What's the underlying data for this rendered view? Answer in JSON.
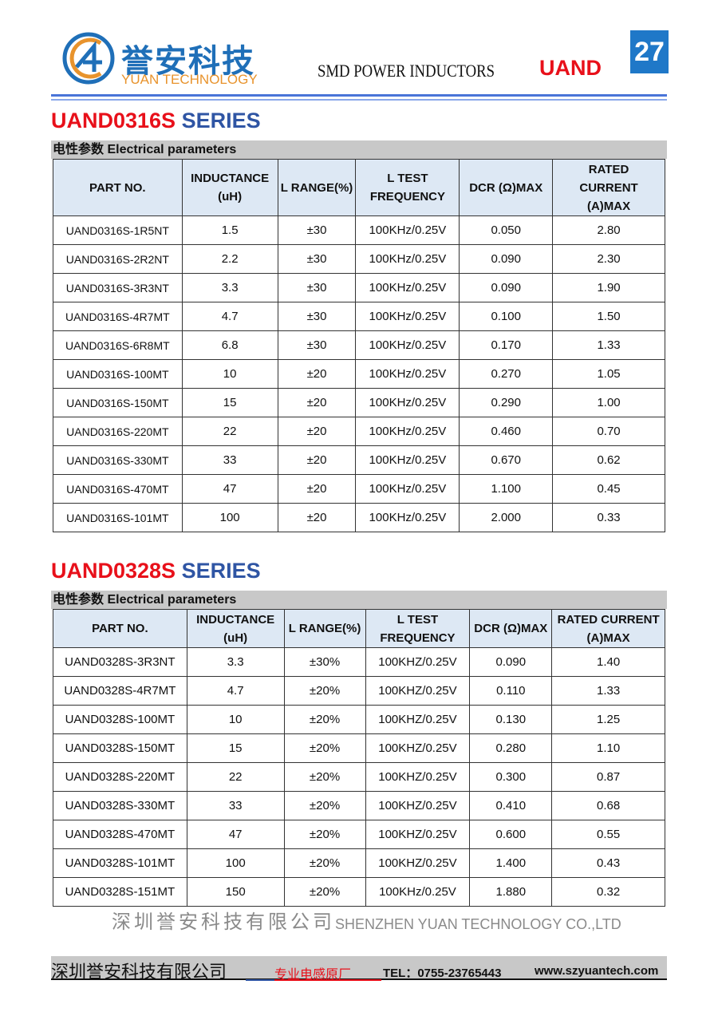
{
  "header": {
    "brand_cn": "誉安科技",
    "brand_en": "YUAN TECHNOLOGY",
    "doc_title": "SMD POWER INDUCTORS",
    "brand_code": "UAND",
    "page_number": "27"
  },
  "section_bar": "电性参数 Electrical parameters",
  "tables": [
    {
      "series_code": "UAND0316S",
      "series_word": "SERIES",
      "columns": [
        "PART NO.",
        "INDUCTANCE (uH)",
        "L RANGE(%)",
        "L TEST FREQUENCY",
        "DCR (Ω)MAX",
        "RATED CURRENT (A)MAX"
      ],
      "rows": [
        [
          "UAND0316S-1R5NT",
          "1.5",
          "±30",
          "100KHz/0.25V",
          "0.050",
          "2.80"
        ],
        [
          "UAND0316S-2R2NT",
          "2.2",
          "±30",
          "100KHz/0.25V",
          "0.090",
          "2.30"
        ],
        [
          "UAND0316S-3R3NT",
          "3.3",
          "±30",
          "100KHz/0.25V",
          "0.090",
          "1.90"
        ],
        [
          "UAND0316S-4R7MT",
          "4.7",
          "±30",
          "100KHz/0.25V",
          "0.100",
          "1.50"
        ],
        [
          "UAND0316S-6R8MT",
          "6.8",
          "±30",
          "100KHz/0.25V",
          "0.170",
          "1.33"
        ],
        [
          "UAND0316S-100MT",
          "10",
          "±20",
          "100KHz/0.25V",
          "0.270",
          "1.05"
        ],
        [
          "UAND0316S-150MT",
          "15",
          "±20",
          "100KHz/0.25V",
          "0.290",
          "1.00"
        ],
        [
          "UAND0316S-220MT",
          "22",
          "±20",
          "100KHz/0.25V",
          "0.460",
          "0.70"
        ],
        [
          "UAND0316S-330MT",
          "33",
          "±20",
          "100KHz/0.25V",
          "0.670",
          "0.62"
        ],
        [
          "UAND0316S-470MT",
          "47",
          "±20",
          "100KHz/0.25V",
          "1.100",
          "0.45"
        ],
        [
          "UAND0316S-101MT",
          "100",
          "±20",
          "100KHz/0.25V",
          "2.000",
          "0.33"
        ]
      ]
    },
    {
      "series_code": "UAND0328S",
      "series_word": "SERIES",
      "columns": [
        "PART NO.",
        "INDUCTANCE (uH)",
        "L RANGE(%)",
        "L TEST FREQUENCY",
        "DCR (Ω)MAX",
        "RATED CURRENT (A)MAX"
      ],
      "rows": [
        [
          "UAND0328S-3R3NT",
          "3.3",
          "±30%",
          "100KHZ/0.25V",
          "0.090",
          "1.40"
        ],
        [
          "UAND0328S-4R7MT",
          "4.7",
          "±20%",
          "100KHZ/0.25V",
          "0.110",
          "1.33"
        ],
        [
          "UAND0328S-100MT",
          "10",
          "±20%",
          "100KHZ/0.25V",
          "0.130",
          "1.25"
        ],
        [
          "UAND0328S-150MT",
          "15",
          "±20%",
          "100KHZ/0.25V",
          "0.280",
          "1.10"
        ],
        [
          "UAND0328S-220MT",
          "22",
          "±20%",
          "100KHZ/0.25V",
          "0.300",
          "0.87"
        ],
        [
          "UAND0328S-330MT",
          "33",
          "±20%",
          "100KHZ/0.25V",
          "0.410",
          "0.68"
        ],
        [
          "UAND0328S-470MT",
          "47",
          "±20%",
          "100KHZ/0.25V",
          "0.600",
          "0.55"
        ],
        [
          "UAND0328S-101MT",
          "100",
          "±20%",
          "100KHZ/0.25V",
          "1.400",
          "0.43"
        ],
        [
          "UAND0328S-151MT",
          "150",
          "±20%",
          "100KHz/0.25V",
          "1.880",
          "0.32"
        ]
      ]
    }
  ],
  "watermark": {
    "cn": "深圳誉安科技有限公司",
    "en": "SHENZHEN YUAN TECHNOLOGY CO.,LTD"
  },
  "footer": {
    "company": "深圳誉安科技有限公司",
    "slogan": "专业电感原厂",
    "tel": "TEL：0755-23765443",
    "website": "www.szyuantech.com"
  },
  "colors": {
    "brand_blue": "#1f6fb8",
    "brand_orange": "#e8932c",
    "accent_red": "#e8101a",
    "series_blue": "#2f55a4",
    "header_cell": "#dde8f4"
  }
}
